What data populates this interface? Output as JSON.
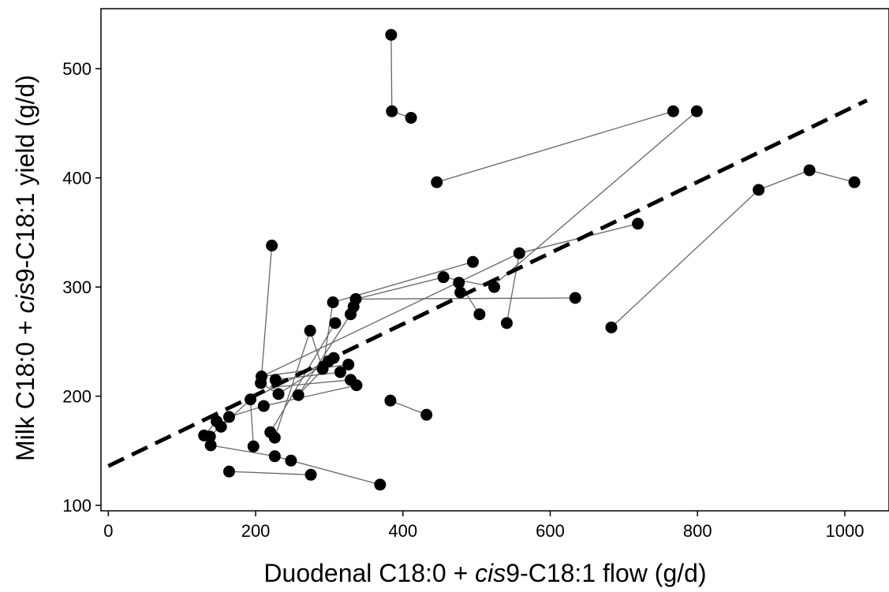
{
  "chart_data": {
    "type": "scatter",
    "title": "",
    "xlabel": {
      "pre": "Duodenal C18:0 + ",
      "ital": "cis",
      "post": "9-C18:1 flow (g/d)"
    },
    "ylabel": {
      "pre": "Milk C18:0 + ",
      "ital": "cis",
      "post": "9-C18:1 yield (g/d)"
    },
    "xlim": [
      -10,
      1060
    ],
    "ylim": [
      95,
      555
    ],
    "x_ticks": [
      0,
      200,
      400,
      600,
      800,
      1000
    ],
    "x_tick_labels": [
      "0",
      "200",
      "400",
      "600",
      "800",
      "1000"
    ],
    "y_ticks": [
      100,
      200,
      300,
      400,
      500
    ],
    "y_tick_labels": [
      "100",
      "200",
      "300",
      "400",
      "500"
    ],
    "grid": false,
    "colors": {
      "points": "#000000",
      "segments": "#666666",
      "fit_line": "#000000"
    },
    "points": [
      [
        384,
        531
      ],
      [
        385,
        461
      ],
      [
        411,
        455
      ],
      [
        767,
        461
      ],
      [
        799,
        461
      ],
      [
        446,
        396
      ],
      [
        952,
        407
      ],
      [
        1013,
        396
      ],
      [
        883,
        389
      ],
      [
        719,
        358
      ],
      [
        683,
        263
      ],
      [
        222,
        338
      ],
      [
        558,
        331
      ],
      [
        495,
        323
      ],
      [
        455,
        309
      ],
      [
        476,
        304
      ],
      [
        524,
        300
      ],
      [
        478,
        295
      ],
      [
        634,
        290
      ],
      [
        504,
        275
      ],
      [
        541,
        267
      ],
      [
        336,
        289
      ],
      [
        333,
        282
      ],
      [
        329,
        275
      ],
      [
        305,
        286
      ],
      [
        308,
        267
      ],
      [
        274,
        260
      ],
      [
        291,
        225
      ],
      [
        299,
        232
      ],
      [
        306,
        235
      ],
      [
        315,
        222
      ],
      [
        326,
        229
      ],
      [
        329,
        215
      ],
      [
        337,
        210
      ],
      [
        208,
        218
      ],
      [
        207,
        212
      ],
      [
        227,
        215
      ],
      [
        231,
        202
      ],
      [
        258,
        201
      ],
      [
        193,
        197
      ],
      [
        211,
        191
      ],
      [
        383,
        196
      ],
      [
        432,
        183
      ],
      [
        164,
        181
      ],
      [
        147,
        177
      ],
      [
        153,
        172
      ],
      [
        130,
        164
      ],
      [
        138,
        163
      ],
      [
        139,
        155
      ],
      [
        197,
        154
      ],
      [
        220,
        167
      ],
      [
        226,
        162
      ],
      [
        226,
        145
      ],
      [
        248,
        141
      ],
      [
        164,
        131
      ],
      [
        275,
        128
      ],
      [
        369,
        119
      ]
    ],
    "segments": [
      [
        [
          384,
          531
        ],
        [
          385,
          461
        ]
      ],
      [
        [
          385,
          461
        ],
        [
          411,
          455
        ]
      ],
      [
        [
          446,
          396
        ],
        [
          767,
          461
        ]
      ],
      [
        [
          799,
          461
        ],
        [
          529,
          305
        ]
      ],
      [
        [
          683,
          263
        ],
        [
          883,
          389
        ]
      ],
      [
        [
          883,
          389
        ],
        [
          952,
          407
        ]
      ],
      [
        [
          952,
          407
        ],
        [
          1013,
          396
        ]
      ],
      [
        [
          222,
          338
        ],
        [
          208,
          218
        ]
      ],
      [
        [
          207,
          212
        ],
        [
          231,
          202
        ]
      ],
      [
        [
          558,
          331
        ],
        [
          541,
          267
        ]
      ],
      [
        [
          208,
          218
        ],
        [
          558,
          331
        ]
      ],
      [
        [
          558,
          331
        ],
        [
          719,
          358
        ]
      ],
      [
        [
          495,
          323
        ],
        [
          305,
          286
        ]
      ],
      [
        [
          476,
          304
        ],
        [
          504,
          275
        ]
      ],
      [
        [
          336,
          289
        ],
        [
          634,
          290
        ]
      ],
      [
        [
          336,
          289
        ],
        [
          455,
          309
        ]
      ],
      [
        [
          455,
          309
        ],
        [
          524,
          300
        ]
      ],
      [
        [
          305,
          286
        ],
        [
          291,
          225
        ]
      ],
      [
        [
          291,
          225
        ],
        [
          274,
          260
        ]
      ],
      [
        [
          274,
          260
        ],
        [
          226,
          162
        ]
      ],
      [
        [
          308,
          267
        ],
        [
          220,
          167
        ]
      ],
      [
        [
          329,
          275
        ],
        [
          258,
          201
        ]
      ],
      [
        [
          315,
          222
        ],
        [
          227,
          215
        ]
      ],
      [
        [
          306,
          235
        ],
        [
          193,
          197
        ]
      ],
      [
        [
          326,
          229
        ],
        [
          208,
          218
        ]
      ],
      [
        [
          329,
          215
        ],
        [
          220,
          208
        ]
      ],
      [
        [
          337,
          210
        ],
        [
          211,
          191
        ]
      ],
      [
        [
          231,
          202
        ],
        [
          299,
          232
        ]
      ],
      [
        [
          258,
          201
        ],
        [
          306,
          235
        ]
      ],
      [
        [
          193,
          197
        ],
        [
          197,
          154
        ]
      ],
      [
        [
          164,
          181
        ],
        [
          138,
          163
        ]
      ],
      [
        [
          153,
          172
        ],
        [
          193,
          197
        ]
      ],
      [
        [
          130,
          164
        ],
        [
          147,
          177
        ]
      ],
      [
        [
          139,
          155
        ],
        [
          226,
          145
        ]
      ],
      [
        [
          226,
          145
        ],
        [
          248,
          141
        ]
      ],
      [
        [
          248,
          141
        ],
        [
          369,
          119
        ]
      ],
      [
        [
          164,
          131
        ],
        [
          275,
          128
        ]
      ],
      [
        [
          383,
          196
        ],
        [
          432,
          183
        ]
      ],
      [
        [
          211,
          191
        ],
        [
          164,
          181
        ]
      ],
      [
        [
          220,
          208
        ],
        [
          226,
          215
        ]
      ]
    ],
    "fit_line": {
      "style": "dashed",
      "from": [
        0,
        136
      ],
      "to": [
        1030,
        471
      ]
    }
  }
}
